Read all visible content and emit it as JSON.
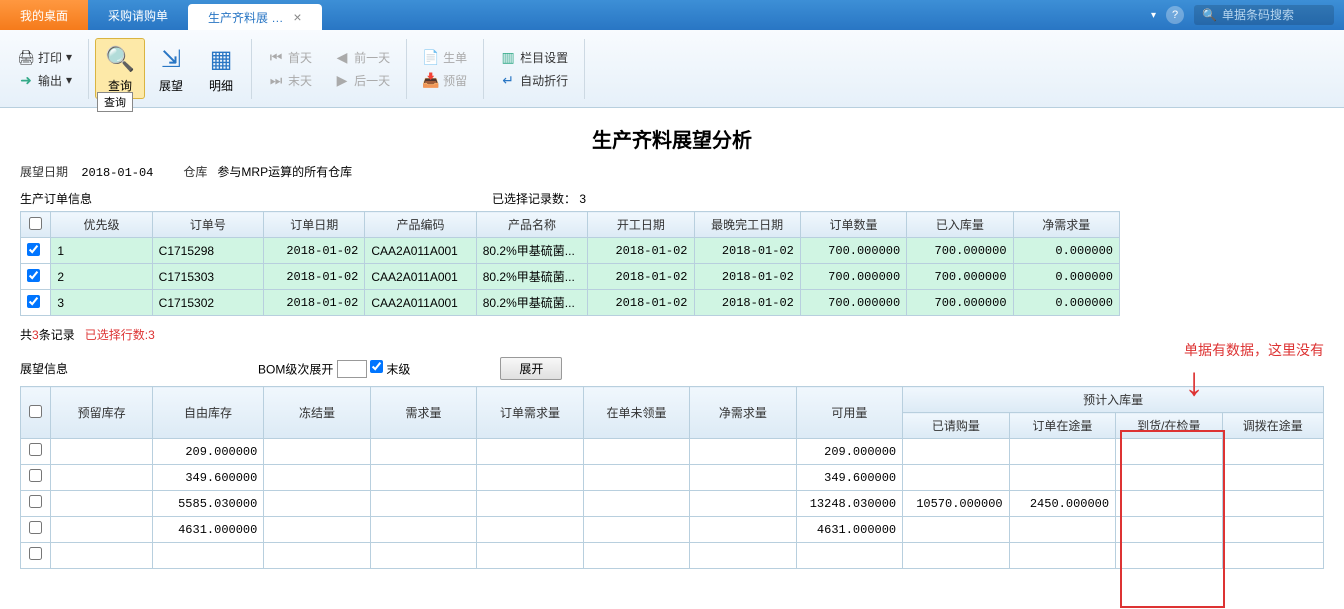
{
  "topbar": {
    "tab1": "我的桌面",
    "tab2": "采购请购单",
    "tab3": "生产齐料展 …",
    "search_placeholder": "单据条码搜索"
  },
  "ribbon": {
    "print": "打印",
    "output": "输出",
    "query": "查询",
    "query_tip": "查询",
    "outlook": "展望",
    "detail": "明细",
    "firstday": "首天",
    "prevday": "前一天",
    "endday": "末天",
    "nextday": "后一天",
    "createorder": "生单",
    "reserve": "预留",
    "col_setting": "栏目设置",
    "auto_wrap": "自动折行"
  },
  "header": {
    "title": "生产齐料展望分析",
    "outlook_date_label": "展望日期",
    "outlook_date": "2018-01-04",
    "warehouse_label": "仓库",
    "warehouse": "参与MRP运算的所有仓库",
    "order_info_label": "生产订单信息",
    "selected_label": "已选择记录数：",
    "selected_count": "3"
  },
  "table1": {
    "cols": [
      "优先级",
      "订单号",
      "订单日期",
      "产品编码",
      "产品名称",
      "开工日期",
      "最晚完工日期",
      "订单数量",
      "已入库量",
      "净需求量"
    ],
    "rows": [
      {
        "priority": "1",
        "order": "C1715298",
        "order_date": "2018-01-02",
        "code": "CAA2A011A001",
        "name": "80.2%甲基硫菌...",
        "start": "2018-01-02",
        "end": "2018-01-02",
        "qty": "700.000000",
        "in": "700.000000",
        "net": "0.000000"
      },
      {
        "priority": "2",
        "order": "C1715303",
        "order_date": "2018-01-02",
        "code": "CAA2A011A001",
        "name": "80.2%甲基硫菌...",
        "start": "2018-01-02",
        "end": "2018-01-02",
        "qty": "700.000000",
        "in": "700.000000",
        "net": "0.000000"
      },
      {
        "priority": "3",
        "order": "C1715302",
        "order_date": "2018-01-02",
        "code": "CAA2A011A001",
        "name": "80.2%甲基硫菌...",
        "start": "2018-01-02",
        "end": "2018-01-02",
        "qty": "700.000000",
        "in": "700.000000",
        "net": "0.000000"
      }
    ]
  },
  "records": {
    "total_pre": "共",
    "total_n": "3",
    "total_post": "条记录",
    "selected": "已选择行数:3"
  },
  "midbar": {
    "outlook_info": "展望信息",
    "bom_level": "BOM级次展开",
    "last_level": "末级",
    "expand": "展开"
  },
  "table2": {
    "group_header": "预计入库量",
    "cols1": [
      "预留库存",
      "自由库存",
      "冻结量",
      "需求量",
      "订单需求量",
      "在单未领量",
      "净需求量",
      "可用量"
    ],
    "cols2": [
      "已请购量",
      "订单在途量",
      "到货/在检量",
      "调拨在途量"
    ],
    "rows": [
      {
        "free": "209.000000",
        "avail": "209.000000"
      },
      {
        "free": "349.600000",
        "avail": "349.600000"
      },
      {
        "free": "5585.030000",
        "avail": "13248.030000",
        "req": "10570.000000",
        "transit": "2450.000000"
      },
      {
        "free": "4631.000000",
        "avail": "4631.000000"
      },
      {}
    ]
  },
  "annotation": "单据有数据，这里没有"
}
